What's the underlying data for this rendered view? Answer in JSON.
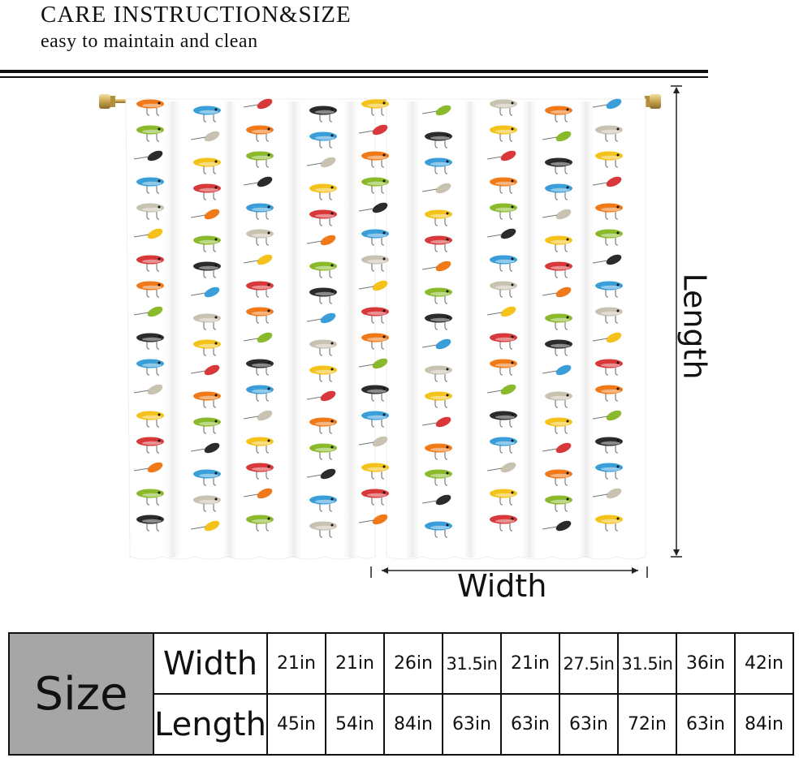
{
  "header": {
    "title": "CARE INSTRUCTION&SIZE",
    "subtitle": "easy to maintain and clean"
  },
  "illustration": {
    "subject": "pair of white curtains printed with rows of colorful fishing lures hanging on a brass rod",
    "dimension_labels": {
      "width": "Width",
      "length": "Length"
    },
    "lure_colors": [
      "#f07a1a",
      "#f4c21b",
      "#3a9fd8",
      "#8aba2c",
      "#d8383a",
      "#c8c2b0",
      "#2b2b2b"
    ]
  },
  "size_table": {
    "size_label": "Size",
    "row_labels": {
      "width": "Width",
      "length": "Length"
    },
    "widths": [
      "21in",
      "21in",
      "26in",
      "31.5in",
      "21in",
      "27.5in",
      "31.5in",
      "36in",
      "42in"
    ],
    "lengths": [
      "45in",
      "54in",
      "84in",
      "63in",
      "63in",
      "63in",
      "72in",
      "63in",
      "84in"
    ]
  }
}
